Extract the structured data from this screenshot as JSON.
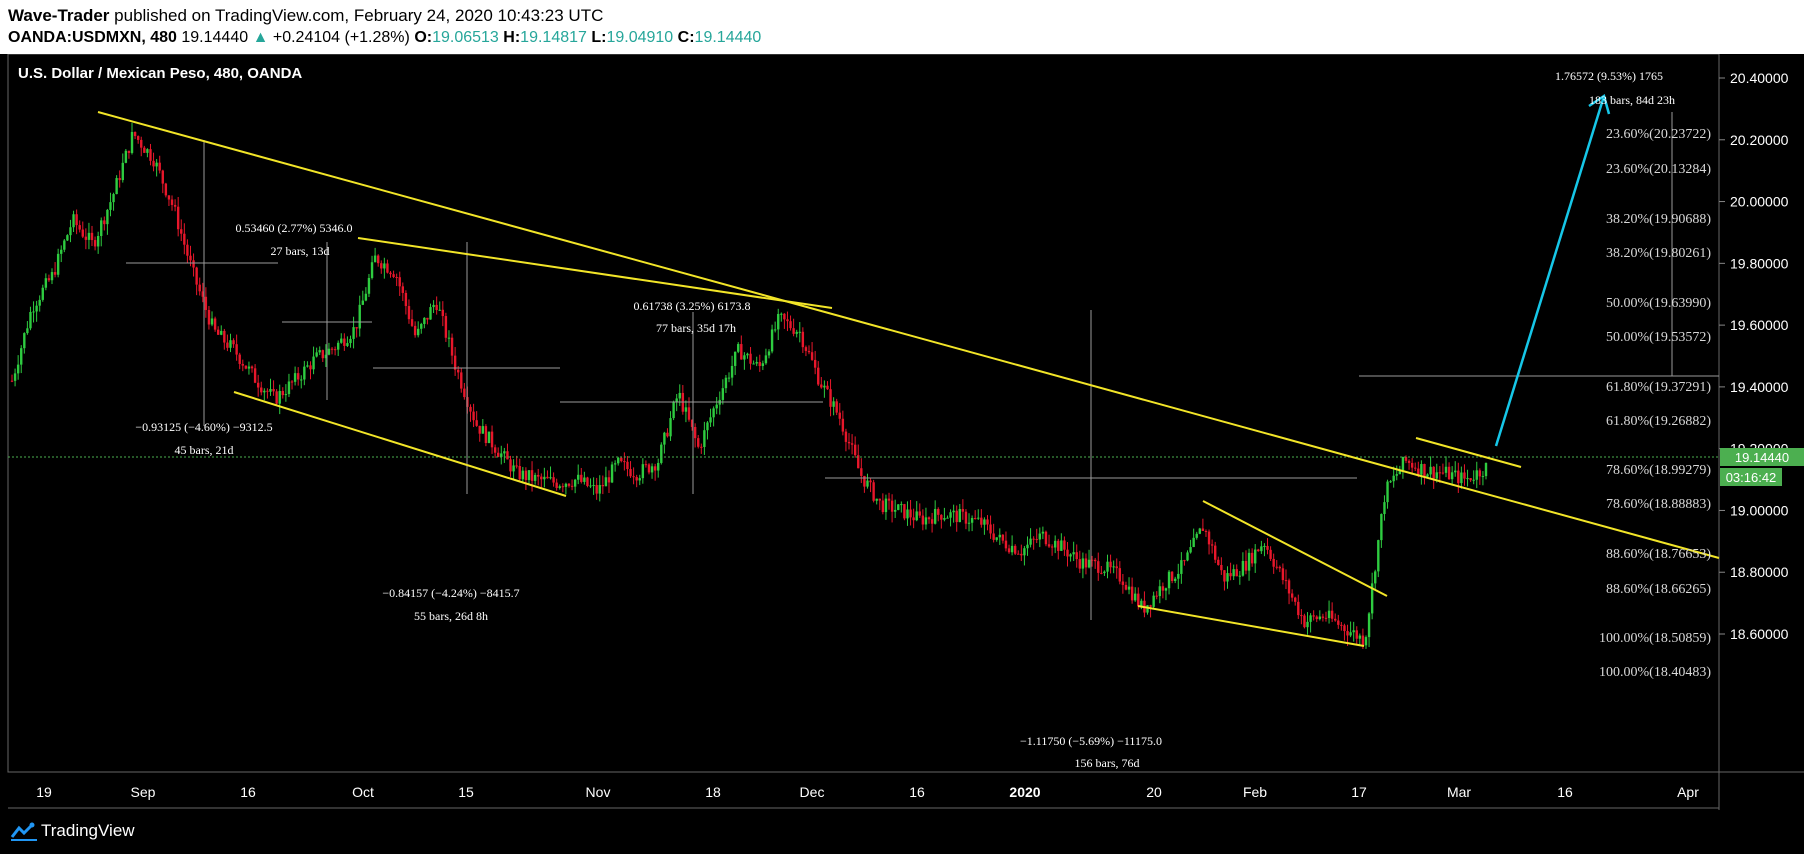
{
  "header": {
    "publisher": "Wave-Trader",
    "published_text": "published on TradingView.com, February 24, 2020 10:43:23 UTC",
    "symbol": "OANDA:USDMXN, 480",
    "last": "19.14440",
    "change": "+0.24104 (+1.28%)",
    "o_label": "O:",
    "o_value": "19.06513",
    "h_label": "H:",
    "h_value": "19.14817",
    "l_label": "L:",
    "l_value": "19.04910",
    "c_label": "C:",
    "c_value": "19.14440"
  },
  "footer": {
    "brand": "TradingView"
  },
  "colors": {
    "up": "#26a69a",
    "candle_up": "#2ecc40",
    "candle_down": "#e8172b",
    "trend": "#f2e528",
    "arrow": "#16c7e8",
    "price_tag": "#4caf50"
  },
  "chart_data": {
    "type": "candlestick",
    "title": "U.S. Dollar / Mexican Peso, 480, OANDA",
    "ylim": [
      18.46,
      20.5
    ],
    "y_ticks": [
      "20.40000",
      "20.20000",
      "20.00000",
      "19.80000",
      "19.60000",
      "19.40000",
      "19.20000",
      "19.00000",
      "18.80000",
      "18.60000"
    ],
    "x_ticks": [
      "19",
      "Sep",
      "16",
      "Oct",
      "15",
      "Nov",
      "18",
      "Dec",
      "16",
      "2020",
      "20",
      "Feb",
      "17",
      "Mar",
      "16",
      "Apr"
    ],
    "last_price": "19.14440",
    "countdown": "03:16:42",
    "closes": [
      19.42,
      19.66,
      19.76,
      19.94,
      19.86,
      20.02,
      20.22,
      20.14,
      19.98,
      19.76,
      19.58,
      19.52,
      19.43,
      19.36,
      19.42,
      19.49,
      19.53,
      19.59,
      19.82,
      19.77,
      19.56,
      19.68,
      19.46,
      19.28,
      19.2,
      19.12,
      19.1,
      19.09,
      19.1,
      19.06,
      19.15,
      19.12,
      19.16,
      19.38,
      19.2,
      19.37,
      19.52,
      19.46,
      19.62,
      19.58,
      19.42,
      19.3,
      19.12,
      19.02,
      19.0,
      18.97,
      18.99,
      18.98,
      18.96,
      18.9,
      18.87,
      18.92,
      18.88,
      18.83,
      18.82,
      18.78,
      18.68,
      18.76,
      18.82,
      18.95,
      18.78,
      18.82,
      18.9,
      18.77,
      18.64,
      18.66,
      18.62,
      18.58,
      19.06,
      19.16,
      19.13,
      19.12,
      19.1,
      19.14
    ],
    "fib_levels": [
      "23.60%(20.23722)",
      "23.60%(20.13284)",
      "38.20%(19.90688)",
      "38.20%(19.80261)",
      "50.00%(19.63990)",
      "50.00%(19.53572)",
      "61.80%(19.37291)",
      "61.80%(19.26882)",
      "78.60%(18.99279)",
      "78.60%(18.88883)",
      "88.60%(18.76653)",
      "88.60%(18.66265)",
      "100.00%(18.50859)",
      "100.00%(18.40483)"
    ],
    "annotations": [
      {
        "line1": "1.76572 (9.53%) 1765",
        "line2": "183 bars, 84d 23h"
      },
      {
        "line1": "0.53460 (2.77%) 5346.0",
        "line2": "27 bars, 13d"
      },
      {
        "line1": "0.61738 (3.25%) 6173.8",
        "line2": "77 bars, 35d 17h"
      },
      {
        "line1": "−0.93125 (−4.60%) −9312.5",
        "line2": "45 bars, 21d"
      },
      {
        "line1": "−0.84157 (−4.24%) −8415.7",
        "line2": "55 bars, 26d 8h"
      },
      {
        "line1": "−1.11750 (−5.69%) −11175.0",
        "line2": "156 bars, 76d"
      }
    ]
  }
}
